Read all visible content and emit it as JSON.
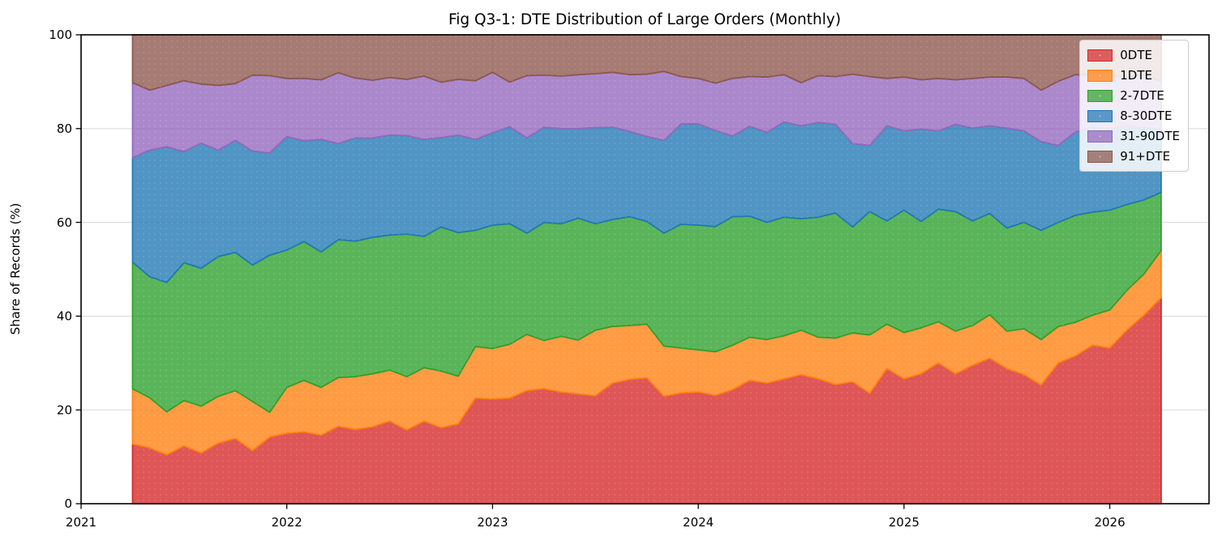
{
  "chart_data": {
    "type": "area",
    "stacked": true,
    "title": "Fig Q3-1: DTE Distribution of Large Orders (Monthly)",
    "ylabel": "Share of Records (%)",
    "xlabel": "",
    "ylim": [
      0,
      100
    ],
    "grid": true,
    "legend_position": "upper right",
    "background_color": "#ffffff",
    "grid_color": "#d9d9d9",
    "spine_color": "#000000",
    "fill_opacity": 0.78,
    "y_ticks": [
      0,
      20,
      40,
      60,
      80,
      100
    ],
    "y_tick_labels": [
      "0",
      "20",
      "40",
      "60",
      "80",
      "100"
    ],
    "x_tick_labels": [
      "2021",
      "2022",
      "2023",
      "2024",
      "2025",
      "2026"
    ],
    "months": [
      "2021-04",
      "2021-05",
      "2021-06",
      "2021-07",
      "2021-08",
      "2021-09",
      "2021-10",
      "2021-11",
      "2021-12",
      "2022-01",
      "2022-02",
      "2022-03",
      "2022-04",
      "2022-05",
      "2022-06",
      "2022-07",
      "2022-08",
      "2022-09",
      "2022-10",
      "2022-11",
      "2022-12",
      "2023-01",
      "2023-02",
      "2023-03",
      "2023-04",
      "2023-05",
      "2023-06",
      "2023-07",
      "2023-08",
      "2023-09",
      "2023-10",
      "2023-11",
      "2023-12",
      "2024-01",
      "2024-02",
      "2024-03",
      "2024-04",
      "2024-05",
      "2024-06",
      "2024-07",
      "2024-08",
      "2024-09",
      "2024-10",
      "2024-11",
      "2024-12",
      "2025-01",
      "2025-02",
      "2025-03",
      "2025-04",
      "2025-05",
      "2025-06",
      "2025-07",
      "2025-08",
      "2025-09",
      "2025-10",
      "2025-11",
      "2025-12",
      "2026-01",
      "2026-02",
      "2026-03",
      "2026-04"
    ],
    "series": [
      {
        "name": "0DTE",
        "color": "#d62728",
        "values": [
          12.7,
          11.9,
          10.4,
          12.3,
          10.8,
          12.9,
          13.9,
          11.3,
          14.2,
          15.0,
          15.3,
          14.6,
          16.5,
          15.8,
          16.4,
          17.6,
          15.7,
          17.6,
          16.2,
          17.0,
          22.5,
          22.3,
          22.5,
          24.1,
          24.5,
          23.8,
          23.4,
          23.0,
          25.7,
          26.5,
          26.8,
          22.9,
          23.6,
          23.8,
          23.1,
          24.3,
          26.3,
          25.7,
          26.6,
          27.5,
          26.6,
          25.4,
          26.0,
          23.5,
          28.8,
          26.6,
          27.7,
          30.0,
          27.7,
          29.5,
          31.0,
          28.8,
          27.5,
          25.3,
          30.0,
          31.5,
          33.8,
          33.2,
          37.0,
          40.2,
          43.9
        ]
      },
      {
        "name": "1DTE",
        "color": "#ff7f0e",
        "values": [
          11.8,
          10.7,
          9.2,
          9.7,
          10.0,
          10.0,
          10.2,
          10.5,
          5.3,
          9.8,
          11.0,
          10.2,
          10.4,
          11.3,
          11.3,
          10.9,
          11.4,
          11.4,
          12.1,
          10.2,
          11.0,
          10.8,
          11.5,
          12.0,
          10.3,
          11.9,
          11.5,
          14.0,
          12.1,
          11.5,
          11.5,
          10.7,
          9.6,
          9.0,
          9.3,
          9.5,
          9.2,
          9.3,
          9.2,
          9.5,
          8.9,
          9.9,
          10.4,
          12.5,
          9.5,
          9.9,
          9.8,
          8.8,
          9.1,
          8.5,
          9.3,
          8.0,
          9.8,
          9.7,
          7.8,
          7.2,
          6.4,
          8.1,
          8.5,
          8.8,
          10.1
        ]
      },
      {
        "name": "2-7DTE",
        "color": "#2ca02c",
        "values": [
          27.0,
          25.8,
          27.6,
          29.4,
          29.4,
          29.8,
          29.5,
          29.1,
          33.5,
          29.3,
          29.6,
          28.9,
          29.4,
          28.9,
          29.1,
          28.8,
          30.4,
          28.0,
          30.7,
          30.6,
          24.8,
          26.3,
          25.7,
          21.6,
          25.2,
          24.0,
          26.0,
          22.7,
          22.8,
          23.2,
          21.9,
          24.1,
          26.4,
          26.6,
          26.7,
          27.4,
          25.8,
          25.0,
          25.3,
          23.8,
          25.6,
          26.7,
          22.6,
          26.3,
          22.0,
          26.1,
          22.7,
          24.0,
          25.5,
          22.3,
          21.6,
          22.0,
          22.7,
          23.3,
          22.2,
          22.8,
          22.0,
          21.3,
          18.3,
          15.8,
          12.4
        ]
      },
      {
        "name": "8-30DTE",
        "color": "#1f77b4",
        "values": [
          22.3,
          27.0,
          28.9,
          23.7,
          26.7,
          22.7,
          23.9,
          24.3,
          21.8,
          24.2,
          21.5,
          24.0,
          20.5,
          22.0,
          21.2,
          21.3,
          21.0,
          20.7,
          19.1,
          20.8,
          19.4,
          19.7,
          20.7,
          20.3,
          20.3,
          20.3,
          19.1,
          20.5,
          19.7,
          18.2,
          18.1,
          19.8,
          21.4,
          21.6,
          20.5,
          17.2,
          19.2,
          19.2,
          20.3,
          19.8,
          20.2,
          18.9,
          17.8,
          14.1,
          20.3,
          16.9,
          19.7,
          16.7,
          18.6,
          19.8,
          18.7,
          21.3,
          19.5,
          18.9,
          16.4,
          17.8,
          18.1,
          17.4,
          16.9,
          15.4,
          13.5
        ]
      },
      {
        "name": "31-90DTE",
        "color": "#9467bd",
        "values": [
          16.0,
          12.8,
          13.1,
          15.1,
          12.6,
          13.8,
          12.1,
          16.2,
          16.5,
          12.4,
          13.3,
          12.7,
          15.1,
          12.8,
          12.3,
          12.3,
          12.0,
          13.5,
          11.8,
          11.9,
          12.5,
          12.9,
          9.5,
          13.3,
          11.1,
          11.2,
          11.5,
          11.5,
          11.7,
          12.1,
          13.3,
          14.7,
          10.1,
          9.7,
          10.1,
          12.3,
          10.6,
          11.8,
          10.1,
          9.2,
          10.0,
          10.2,
          14.8,
          14.7,
          10.1,
          11.5,
          10.5,
          11.2,
          9.5,
          10.6,
          10.4,
          10.9,
          11.2,
          11.0,
          13.7,
          12.2,
          11.2,
          11.3,
          10.3,
          11.3,
          10.1
        ]
      },
      {
        "name": "91+DTE",
        "color": "#8c564b",
        "values": [
          10.2,
          11.8,
          10.8,
          9.8,
          10.5,
          10.8,
          10.4,
          8.6,
          8.7,
          9.3,
          9.3,
          9.6,
          8.1,
          9.2,
          9.7,
          9.1,
          9.5,
          8.8,
          10.1,
          9.5,
          9.8,
          8.0,
          10.1,
          8.7,
          8.6,
          8.8,
          8.5,
          8.3,
          8.0,
          8.5,
          8.4,
          7.8,
          8.9,
          9.3,
          10.3,
          9.3,
          8.9,
          9.0,
          8.5,
          10.2,
          8.7,
          8.9,
          8.4,
          8.9,
          9.3,
          9.0,
          9.6,
          9.3,
          9.6,
          9.3,
          9.0,
          9.0,
          9.3,
          11.8,
          9.9,
          8.5,
          8.5,
          8.7,
          9.0,
          8.5,
          10.0
        ]
      }
    ]
  }
}
